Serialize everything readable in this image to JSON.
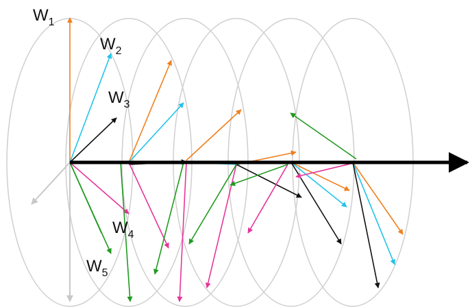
{
  "labels": {
    "w1": {
      "main": "W",
      "sub": "1"
    },
    "w2": {
      "main": "W",
      "sub": "2"
    },
    "w3": {
      "main": "W",
      "sub": "3"
    },
    "w4": {
      "main": "W",
      "sub": "4"
    },
    "w5": {
      "main": "W",
      "sub": "5"
    }
  },
  "colors": {
    "orange": "#f07f1e",
    "cyan": "#22c3ea",
    "black": "#111111",
    "magenta": "#e5369a",
    "green": "#1f9a1f",
    "gray": "#c8c8c8",
    "ellipse": "#cfcfcf"
  }
}
